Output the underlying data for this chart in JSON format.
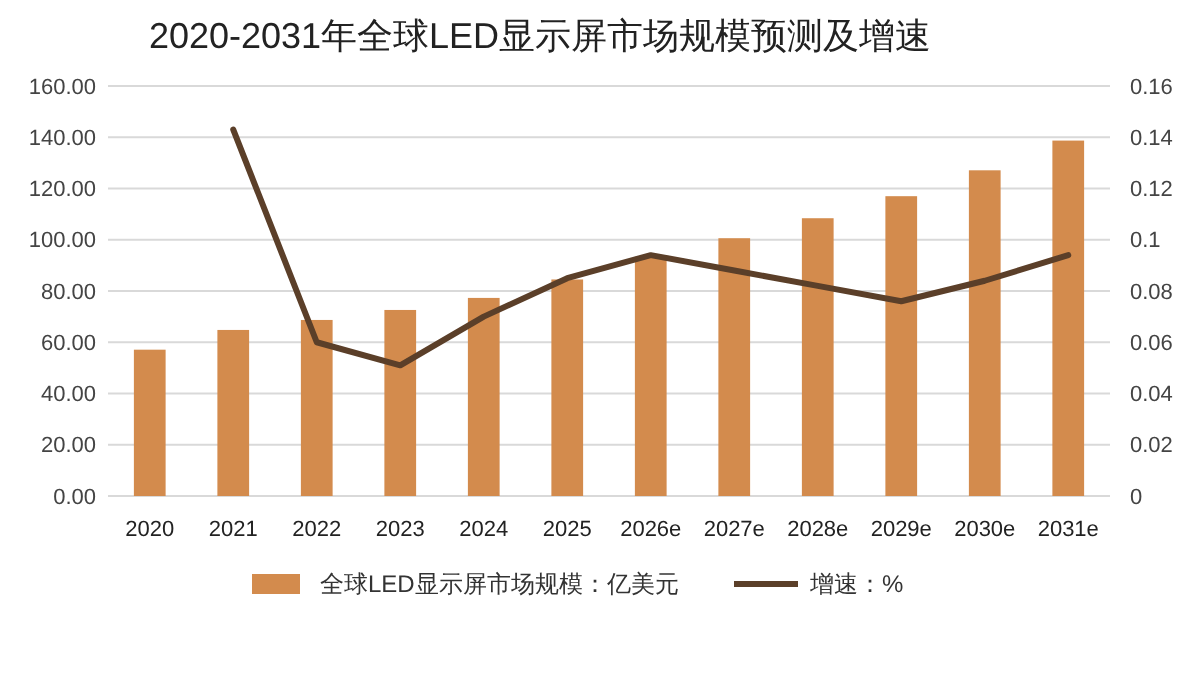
{
  "chart_data": {
    "type": "bar",
    "title": "2020-2031年全球LED显示屏市场规模预测及增速",
    "categories": [
      "2020",
      "2021",
      "2022",
      "2023",
      "2024",
      "2025",
      "2026e",
      "2027e",
      "2028e",
      "2029e",
      "2030e",
      "2031e"
    ],
    "series": [
      {
        "name": "全球LED显示屏市场规模：亿美元",
        "color": "#d38b4d",
        "values": [
          57.1,
          64.8,
          68.7,
          72.6,
          77.3,
          84.5,
          93.4,
          100.6,
          108.4,
          117.0,
          127.1,
          138.7
        ]
      },
      {
        "name": "增速：%",
        "type": "line",
        "axis": "y2",
        "color": "#5b3f29",
        "values": [
          null,
          0.143,
          0.06,
          0.051,
          0.07,
          0.085,
          0.094,
          0.088,
          0.082,
          0.076,
          0.084,
          0.094
        ]
      }
    ],
    "ylim": [
      0,
      160
    ],
    "yticks": [
      {
        "value": 0,
        "label": "0.00"
      },
      {
        "value": 20,
        "label": "20.00"
      },
      {
        "value": 40,
        "label": "40.00"
      },
      {
        "value": 60,
        "label": "60.00"
      },
      {
        "value": 80,
        "label": "80.00"
      },
      {
        "value": 100,
        "label": "100.00"
      },
      {
        "value": 120,
        "label": "120.00"
      },
      {
        "value": 140,
        "label": "140.00"
      },
      {
        "value": 160,
        "label": "160.00"
      }
    ],
    "y2lim": [
      0,
      0.16
    ],
    "y2ticks": [
      0,
      0.02,
      0.04,
      0.06,
      0.08,
      0.1,
      0.12,
      0.14,
      0.16
    ],
    "grid": "y",
    "legend": "bottom",
    "marker": "none",
    "line_style": "solid"
  }
}
